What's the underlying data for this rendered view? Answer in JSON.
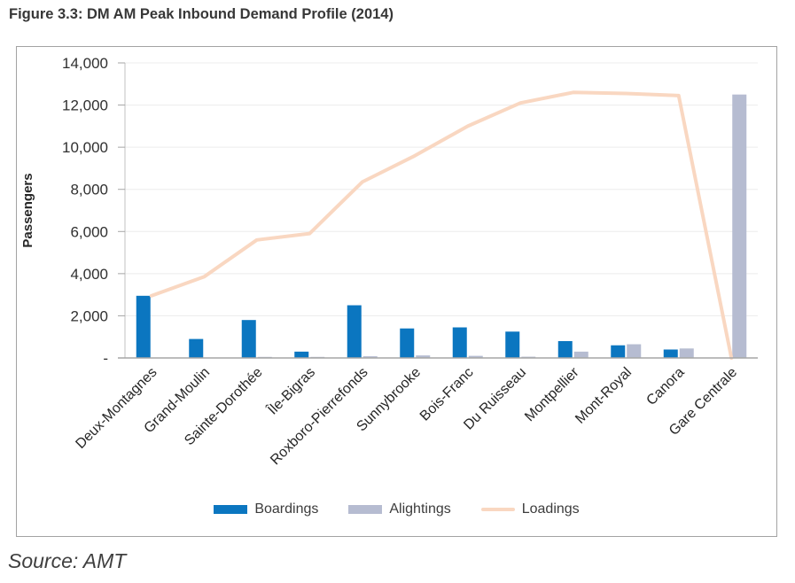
{
  "figure_title": "Figure 3.3: DM AM Peak Inbound Demand Profile (2014)",
  "source_note": "Source: AMT",
  "colors": {
    "boardings": "#0b76c0",
    "alightings": "#b6bcd1",
    "loadings": "#f9d7c1",
    "gridline": "#ececec",
    "axis_line": "#a6a6a6",
    "y_axis_line": "#c0c0c0",
    "tick": "#a6a6a6",
    "tick_text": "#303030",
    "label_text": "#262626"
  },
  "chart_data": {
    "type": "bar",
    "title": "",
    "xlabel": "",
    "ylabel": "Passengers",
    "ylim": [
      0,
      14000
    ],
    "ytick_step": 2000,
    "ytick_labels": [
      "-",
      "2,000",
      "4,000",
      "6,000",
      "8,000",
      "10,000",
      "12,000",
      "14,000"
    ],
    "grid": true,
    "legend_position": "bottom",
    "categories": [
      "Deux-Montagnes",
      "Grand-Moulin",
      "Sainte-Dorothée",
      "Île-Bigras",
      "Roxboro-Pierrefonds",
      "Sunnybrooke",
      "Bois-Franc",
      "Du Ruisseau",
      "Montpellier",
      "Mont-Royal",
      "Canora",
      "Gare Centrale"
    ],
    "series": [
      {
        "name": "Boardings",
        "type": "bar",
        "color": "#0b76c0",
        "values": [
          2950,
          900,
          1800,
          300,
          2500,
          1400,
          1450,
          1250,
          800,
          600,
          400,
          0
        ]
      },
      {
        "name": "Alightings",
        "type": "bar",
        "color": "#b6bcd1",
        "values": [
          0,
          0,
          50,
          50,
          80,
          120,
          100,
          60,
          300,
          650,
          450,
          12500
        ]
      },
      {
        "name": "Loadings",
        "type": "line",
        "color": "#f9d7c1",
        "values": [
          2950,
          3850,
          5600,
          5900,
          8350,
          9600,
          11000,
          12100,
          12600,
          12550,
          12450,
          0
        ]
      }
    ]
  }
}
